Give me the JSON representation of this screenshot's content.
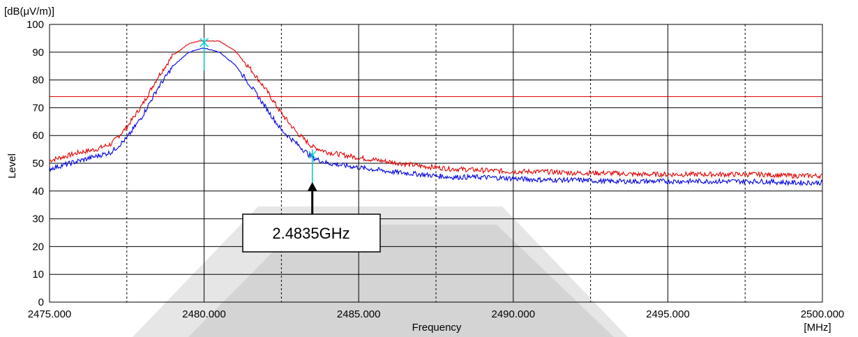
{
  "chart_data": {
    "type": "line",
    "unit_label": "[dB(μV/m)]",
    "ylabel": "Level",
    "xlabel": "Frequency",
    "x_unit": "[MHz]",
    "xlim": [
      2475,
      2500
    ],
    "ylim": [
      0,
      100
    ],
    "x_tick_labels": [
      "2475.000",
      "2480.000",
      "2485.000",
      "2490.000",
      "2495.000",
      "2500.000"
    ],
    "y_tick_labels": [
      "0",
      "10",
      "20",
      "30",
      "40",
      "50",
      "60",
      "70",
      "80",
      "90",
      "100"
    ],
    "grid": true,
    "limit_line": {
      "value": 74,
      "color": "#e00000"
    },
    "series": [
      {
        "color": "#e00000",
        "x": [
          2475.0,
          2475.5,
          2476.0,
          2476.5,
          2477.0,
          2477.5,
          2478.0,
          2478.5,
          2479.0,
          2479.5,
          2479.85,
          2480.5,
          2481.0,
          2481.5,
          2482.0,
          2482.5,
          2483.0,
          2483.5,
          2484.0,
          2485.0,
          2486.0,
          2487.0,
          2488.0,
          2489.0,
          2490.0,
          2491.0,
          2492.0,
          2493.0,
          2494.0,
          2495.0,
          2496.0,
          2497.0,
          2498.0,
          2499.0,
          2500.0
        ],
        "y": [
          51,
          52.5,
          54,
          55,
          57,
          63,
          71,
          81,
          89,
          93,
          94,
          94,
          90.5,
          84,
          76.5,
          68,
          61,
          56,
          54,
          52,
          50.5,
          49,
          48,
          47.5,
          47,
          47,
          46.5,
          46.5,
          46,
          46,
          46,
          46,
          46,
          45.5,
          45.5
        ]
      },
      {
        "color": "#0000e0",
        "x": [
          2475.0,
          2475.5,
          2476.0,
          2476.5,
          2477.0,
          2477.5,
          2478.0,
          2478.5,
          2479.0,
          2479.5,
          2480.0,
          2480.5,
          2481.0,
          2481.5,
          2482.0,
          2482.5,
          2483.0,
          2483.5,
          2484.0,
          2485.0,
          2486.0,
          2487.0,
          2488.0,
          2489.0,
          2490.0,
          2491.0,
          2492.0,
          2493.0,
          2494.0,
          2495.0,
          2496.0,
          2497.0,
          2498.0,
          2499.0,
          2500.0
        ],
        "y": [
          48,
          49.5,
          51,
          52.5,
          54,
          59,
          67,
          77,
          85,
          90,
          91.5,
          90,
          85.5,
          78,
          70,
          62,
          57,
          52,
          50,
          48.5,
          47,
          46,
          45,
          45,
          44.5,
          44,
          44,
          43.5,
          43.5,
          43.5,
          43.5,
          43.5,
          43.5,
          43,
          43
        ]
      }
    ],
    "peak_marker": {
      "x": 2480.0,
      "y": 93.5,
      "color": "#00cccc"
    },
    "edge_marker": {
      "x": 2483.5,
      "y": 53,
      "color": "#00cccc"
    },
    "annotation": {
      "text": "2.4835GHz",
      "x": 2483.5
    }
  }
}
